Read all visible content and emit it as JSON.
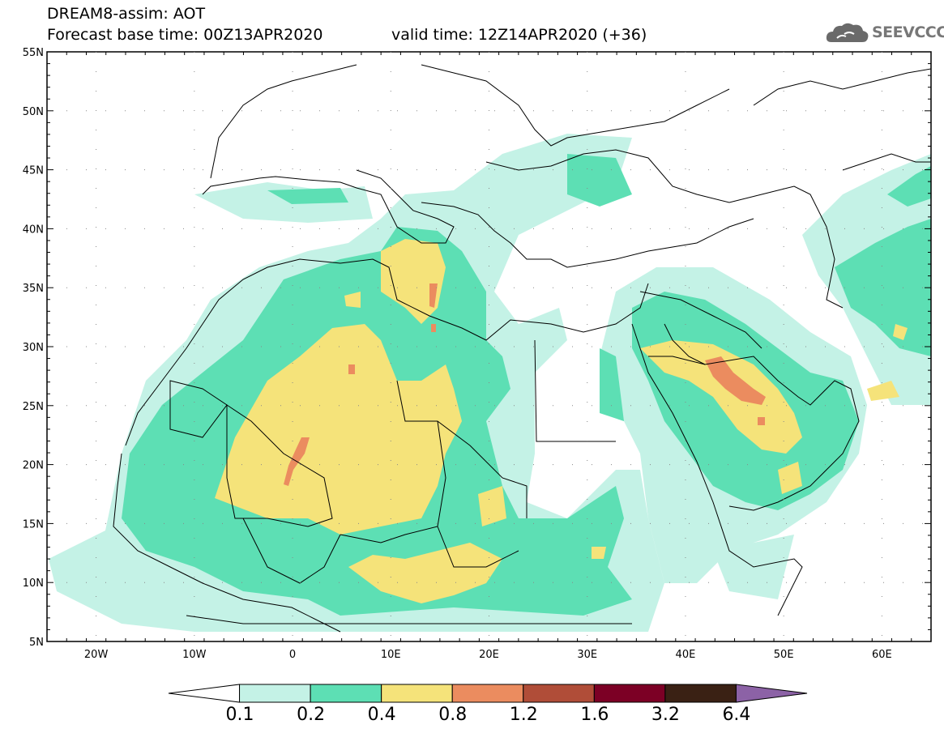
{
  "header": {
    "title": "DREAM8-assim: AOT",
    "base_time": "Forecast base time: 00Z13APR2020",
    "valid_time": "valid time: 12Z14APR2020 (+36)"
  },
  "logo": {
    "text": "SEEVCCC",
    "icon": "cloud-icon"
  },
  "map": {
    "lat_labels": [
      "55N",
      "50N",
      "45N",
      "40N",
      "35N",
      "30N",
      "25N",
      "20N",
      "15N",
      "10N",
      "5N"
    ],
    "lon_labels": [
      "20W",
      "10W",
      "0",
      "10E",
      "20E",
      "30E",
      "40E",
      "50E",
      "60E"
    ],
    "lat_range": [
      5,
      55
    ],
    "lon_range": [
      -25,
      65
    ]
  },
  "legend": {
    "labels": [
      "0.1",
      "0.2",
      "0.4",
      "0.8",
      "1.2",
      "1.6",
      "3.2",
      "6.4"
    ],
    "colors": [
      "#ffffff",
      "#c4f2e6",
      "#5ddfb4",
      "#f5e37a",
      "#eb8c5f",
      "#b04d38",
      "#7c0025",
      "#3a2114",
      "#8c62a6"
    ]
  }
}
